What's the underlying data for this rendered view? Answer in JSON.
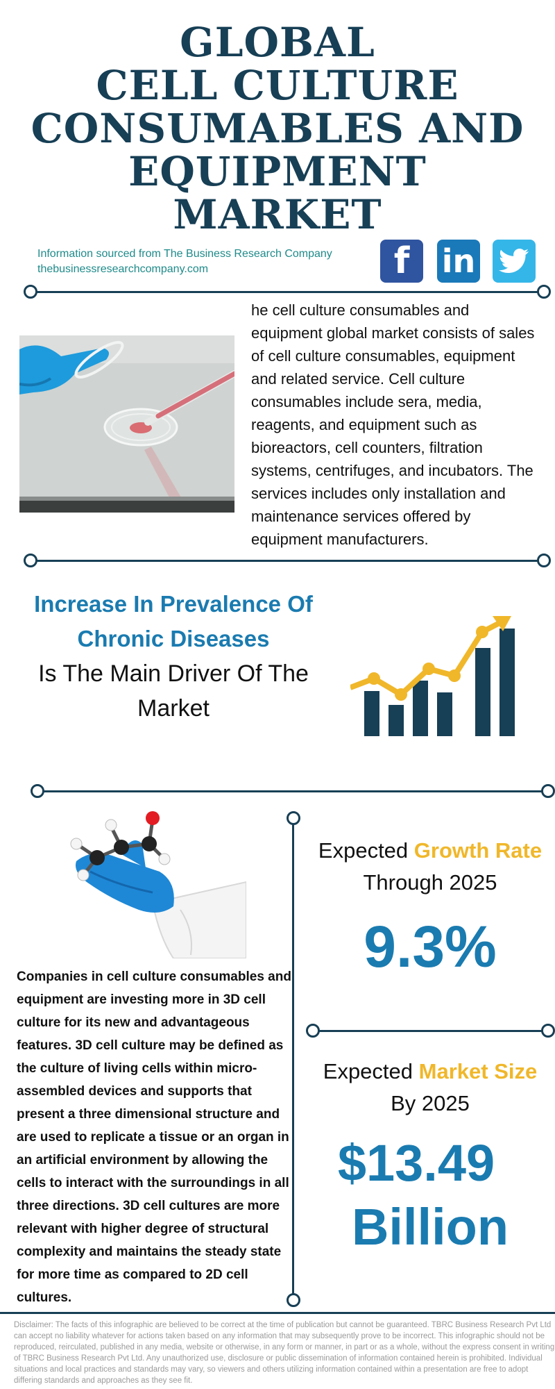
{
  "title": {
    "line1": "GLOBAL",
    "line2": "CELL CULTURE",
    "line3": "CONSUMABLES AND",
    "line4": "EQUIPMENT",
    "line5": "MARKET"
  },
  "source": {
    "line1": "Information sourced from The Business Research Company",
    "line2": "thebusinessresearchcompany.com"
  },
  "social": {
    "facebook": "f",
    "linkedin": "in",
    "twitter_icon": "twitter-bird"
  },
  "intro": "he cell culture consumables and equipment global market consists of sales of cell culture consumables, equipment and related service. Cell culture consumables include sera, media, reagents, and equipment such as bioreactors, cell counters, filtration systems, centrifuges, and incubators. The services includes only installation and maintenance services offered by equipment manufacturers.",
  "driver": {
    "highlight": "Increase In Prevalence Of Chronic Diseases",
    "rest": "Is The Main Driver Of The Market"
  },
  "colors": {
    "navy": "#173f55",
    "blue": "#1a7bb0",
    "yellow": "#f0b72a"
  },
  "body_text": "Companies in cell culture consumables and equipment are investing more in 3D cell culture for its new and advantageous features. 3D cell culture may be defined as the culture of living cells within micro-assembled devices and supports that present a three dimensional structure and are used to replicate a tissue or an organ in an artificial environment by allowing the cells to interact with the surroundings in all three directions. 3D cell cultures are more relevant with higher degree of structural complexity and maintains the steady state for more time as compared to 2D cell cultures.",
  "growth": {
    "prefix": "Expected",
    "highlight": "Growth Rate",
    "suffix": "Through 2025",
    "value": "9.3%"
  },
  "market": {
    "prefix": "Expected",
    "highlight": "Market Size",
    "suffix": "By 2025",
    "value_line1": "$13.49",
    "value_line2": "Billion"
  },
  "disclaimer": "Disclaimer: The facts of this infographic are believed to be correct at the time of publication but cannot be guaranteed. TBRC Business Research Pvt Ltd can accept no liability whatever for actions taken based on any information that may subsequently prove to be incorrect. This infographic should not be reproduced, reirculated, published in any media, website or otherwise, in any form or manner, in part or as a whole, without the express consent in writing of TBRC Business Research Pvt Ltd. Any unauthorized use, disclosure or public dissemination of information contained herein is prohibited. Individual situations and local practices and standards may vary, so viewers and others utilizing information contained within a presentation are free to adopt differing standards and approaches as they see fit."
}
